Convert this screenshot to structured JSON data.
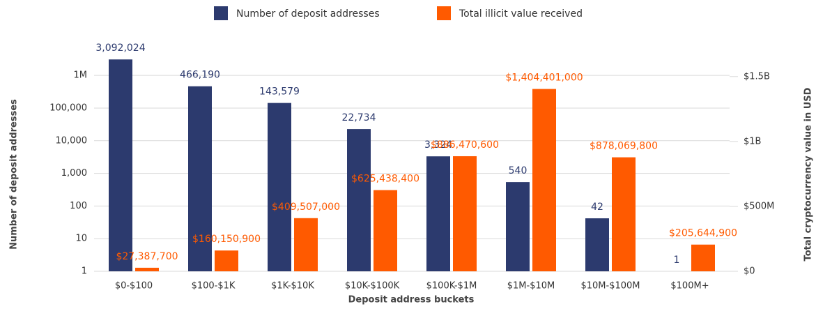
{
  "chart_data": {
    "type": "bar",
    "xlabel": "Deposit address buckets",
    "ylabel": "Number of deposit addresses",
    "y2label": "Total cryptocurrency value in USD",
    "categories": [
      "$0-$100",
      "$100-$1K",
      "$1K-$10K",
      "$10K-$100K",
      "$100K-$1M",
      "$1M-$10M",
      "$10M-$100M",
      "$100M+"
    ],
    "series": [
      {
        "name": "Number of deposit addresses",
        "color": "#2c3a6e",
        "values": [
          3092024,
          466190,
          143579,
          22734,
          3324,
          540,
          42,
          1
        ],
        "value_labels": [
          "3,092,024",
          "466,190",
          "143,579",
          "22,734",
          "3,324",
          "540",
          "42",
          "1"
        ]
      },
      {
        "name": "Total illicit value received",
        "color": "#ff5a00",
        "axis": "y2",
        "values": [
          27387700,
          160150900,
          409507000,
          625438400,
          886470600,
          1404401000,
          878069800,
          205644900
        ],
        "value_labels": [
          "$27,387,700",
          "$160,150,900",
          "$409,507,000",
          "$625,438,400",
          "$886,470,600",
          "$1,404,401,000",
          "$878,069,800",
          "$205,644,900"
        ]
      }
    ],
    "ylog": true,
    "ylim": [
      1,
      4000000
    ],
    "yticks": [
      1,
      10,
      100,
      {
        "value": 1000,
        "label": "1,000"
      },
      {
        "value": 10000,
        "label": "10,000"
      },
      {
        "value": 100000,
        "label": "100,000"
      },
      {
        "value": 1000000,
        "label": "1M"
      }
    ],
    "y2lim": [
      0,
      1660000000
    ],
    "y2ticks": [
      {
        "value": 0,
        "label": "$0"
      },
      {
        "value": 500000000,
        "label": "$500M"
      },
      {
        "value": 1000000000,
        "label": "$1B"
      },
      {
        "value": 1500000000,
        "label": "$1.5B"
      }
    ],
    "grid": true,
    "legend": "top"
  }
}
